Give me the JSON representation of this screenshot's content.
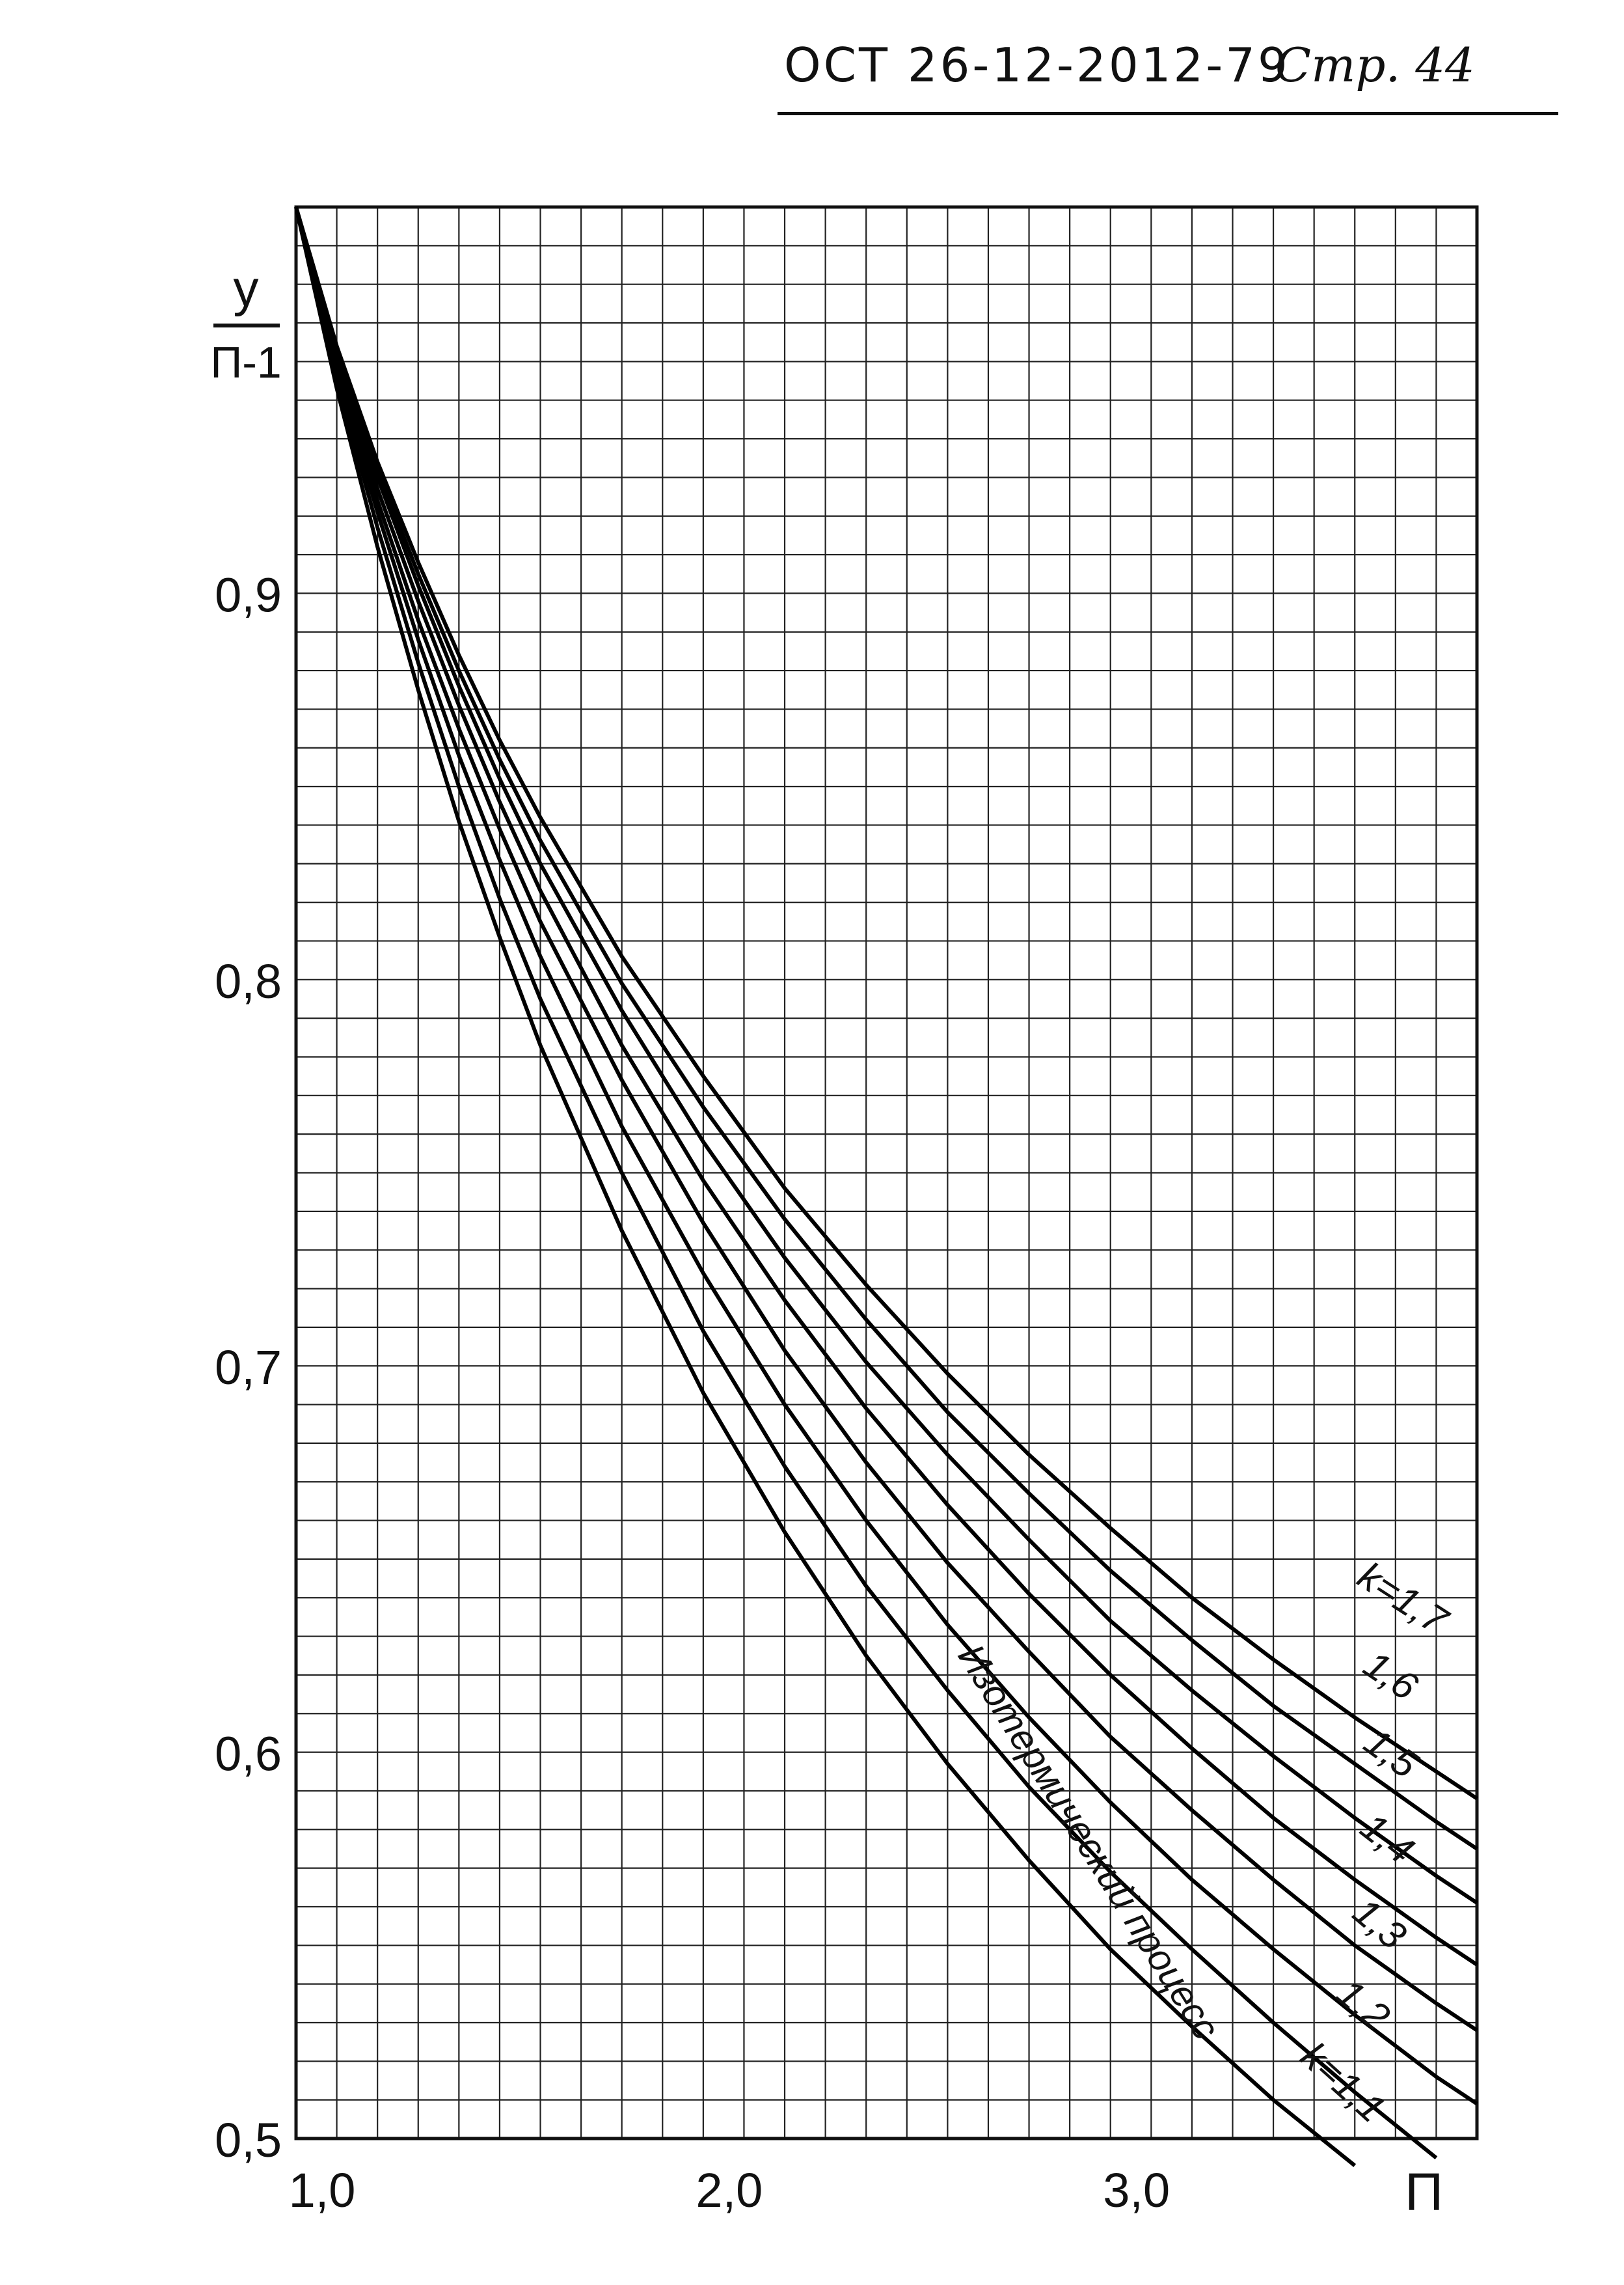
{
  "header": {
    "doc_number": "ОСТ 26-12-2012-79",
    "page_label": "Стр. 44"
  },
  "chart_data": {
    "type": "line",
    "title": "",
    "xlabel": "П",
    "ylabel_numerator": "у",
    "ylabel_denominator": "П-1",
    "xlim": [
      1.0,
      3.9
    ],
    "ylim": [
      0.5,
      1.0
    ],
    "x_ticks": [
      {
        "value": 1.0,
        "label": "1,0"
      },
      {
        "value": 2.0,
        "label": "2,0"
      },
      {
        "value": 3.0,
        "label": "3,0"
      }
    ],
    "y_ticks": [
      {
        "value": 0.5,
        "label": "0,5"
      },
      {
        "value": 0.6,
        "label": "0,6"
      },
      {
        "value": 0.7,
        "label": "0,7"
      },
      {
        "value": 0.8,
        "label": "0,8"
      },
      {
        "value": 0.9,
        "label": "0,9"
      }
    ],
    "grid": true,
    "grid_minor_x": 0.1,
    "grid_minor_y": 0.01,
    "series": [
      {
        "name": "Изотермический процесс",
        "label": "Изотермический процесс",
        "x": [
          1.0,
          1.1,
          1.2,
          1.3,
          1.4,
          1.5,
          1.6,
          1.8,
          2.0,
          2.2,
          2.4,
          2.6,
          2.8,
          3.0,
          3.2,
          3.4,
          3.6
        ],
        "y": [
          1.0,
          0.953,
          0.912,
          0.875,
          0.841,
          0.811,
          0.783,
          0.735,
          0.693,
          0.657,
          0.625,
          0.597,
          0.572,
          0.549,
          0.529,
          0.51,
          0.493
        ]
      },
      {
        "name": "k=1,1",
        "label": "k=1,1",
        "x": [
          1.0,
          1.1,
          1.2,
          1.3,
          1.4,
          1.5,
          1.6,
          1.8,
          2.0,
          2.2,
          2.4,
          2.6,
          2.8,
          3.0,
          3.2,
          3.4,
          3.6,
          3.8
        ],
        "y": [
          1.0,
          0.955,
          0.917,
          0.882,
          0.85,
          0.821,
          0.795,
          0.75,
          0.709,
          0.674,
          0.643,
          0.616,
          0.591,
          0.569,
          0.549,
          0.53,
          0.512,
          0.495
        ]
      },
      {
        "name": "1,2",
        "label": "1,2",
        "x": [
          1.0,
          1.1,
          1.2,
          1.3,
          1.4,
          1.5,
          1.6,
          1.8,
          2.0,
          2.2,
          2.4,
          2.6,
          2.8,
          3.0,
          3.2,
          3.4,
          3.6,
          3.8,
          3.9
        ],
        "y": [
          1.0,
          0.957,
          0.921,
          0.888,
          0.858,
          0.831,
          0.806,
          0.762,
          0.724,
          0.69,
          0.66,
          0.633,
          0.609,
          0.587,
          0.567,
          0.549,
          0.532,
          0.516,
          0.509
        ]
      },
      {
        "name": "1,3",
        "label": "1,3",
        "x": [
          1.0,
          1.1,
          1.2,
          1.3,
          1.4,
          1.5,
          1.6,
          1.8,
          2.0,
          2.2,
          2.4,
          2.6,
          2.8,
          3.0,
          3.2,
          3.4,
          3.6,
          3.8,
          3.9
        ],
        "y": [
          1.0,
          0.959,
          0.924,
          0.893,
          0.865,
          0.839,
          0.815,
          0.774,
          0.737,
          0.704,
          0.675,
          0.649,
          0.626,
          0.604,
          0.585,
          0.567,
          0.55,
          0.535,
          0.528
        ]
      },
      {
        "name": "1,4",
        "label": "1,4",
        "x": [
          1.0,
          1.1,
          1.2,
          1.3,
          1.4,
          1.5,
          1.6,
          1.8,
          2.0,
          2.2,
          2.4,
          2.6,
          2.8,
          3.0,
          3.2,
          3.4,
          3.6,
          3.8,
          3.9
        ],
        "y": [
          1.0,
          0.961,
          0.927,
          0.898,
          0.871,
          0.846,
          0.823,
          0.783,
          0.748,
          0.717,
          0.689,
          0.664,
          0.641,
          0.62,
          0.601,
          0.583,
          0.567,
          0.552,
          0.545
        ]
      },
      {
        "name": "1,5",
        "label": "1,5",
        "x": [
          1.0,
          1.1,
          1.2,
          1.3,
          1.4,
          1.5,
          1.6,
          1.8,
          2.0,
          2.2,
          2.4,
          2.6,
          2.8,
          3.0,
          3.2,
          3.4,
          3.6,
          3.8,
          3.9
        ],
        "y": [
          1.0,
          0.962,
          0.93,
          0.902,
          0.876,
          0.852,
          0.83,
          0.792,
          0.758,
          0.728,
          0.701,
          0.677,
          0.655,
          0.634,
          0.616,
          0.599,
          0.583,
          0.568,
          0.561
        ]
      },
      {
        "name": "1,6",
        "label": "1,6",
        "x": [
          1.0,
          1.1,
          1.2,
          1.3,
          1.4,
          1.5,
          1.6,
          1.8,
          2.0,
          2.2,
          2.4,
          2.6,
          2.8,
          3.0,
          3.2,
          3.4,
          3.6,
          3.8,
          3.9
        ],
        "y": [
          1.0,
          0.963,
          0.932,
          0.905,
          0.88,
          0.857,
          0.836,
          0.799,
          0.767,
          0.738,
          0.712,
          0.688,
          0.667,
          0.647,
          0.629,
          0.612,
          0.597,
          0.582,
          0.575
        ]
      },
      {
        "name": "k=1,7",
        "label": "k=1,7",
        "x": [
          1.0,
          1.1,
          1.2,
          1.3,
          1.4,
          1.5,
          1.6,
          1.8,
          2.0,
          2.2,
          2.4,
          2.6,
          2.8,
          3.0,
          3.2,
          3.4,
          3.6,
          3.8,
          3.9
        ],
        "y": [
          1.0,
          0.964,
          0.934,
          0.908,
          0.884,
          0.862,
          0.842,
          0.806,
          0.775,
          0.746,
          0.721,
          0.698,
          0.677,
          0.658,
          0.64,
          0.624,
          0.609,
          0.595,
          0.588
        ]
      }
    ]
  }
}
